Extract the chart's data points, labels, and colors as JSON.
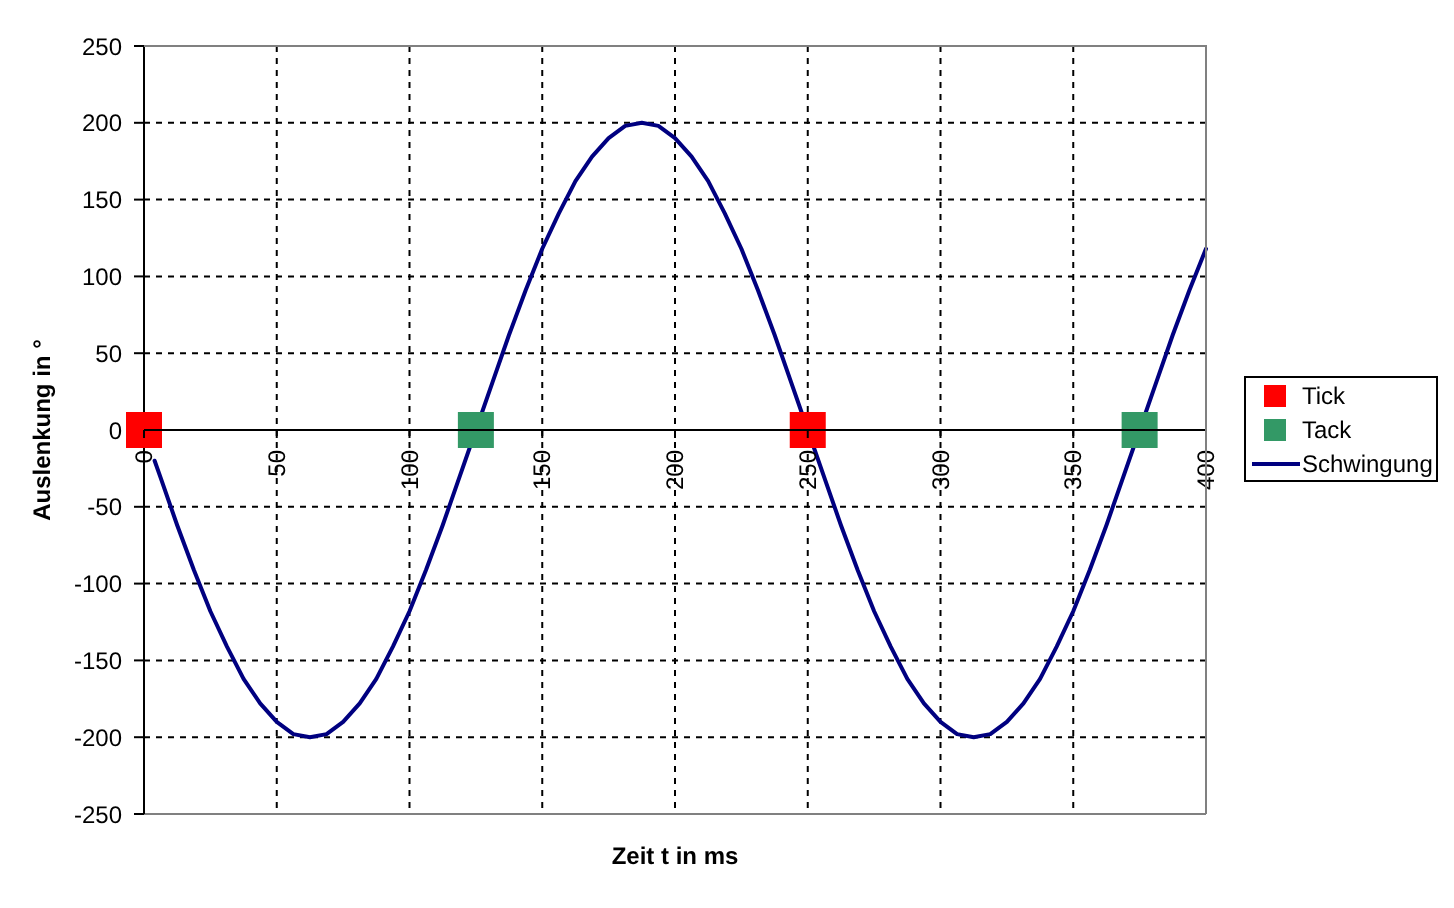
{
  "chart_data": {
    "type": "line",
    "xlabel": "Zeit t in ms",
    "ylabel": "Auslenkung in °",
    "xlim": [
      0,
      400
    ],
    "xticks": [
      0,
      50,
      100,
      150,
      200,
      250,
      300,
      350,
      400
    ],
    "ylim": [
      -250,
      250
    ],
    "yticks": [
      -250,
      -200,
      -150,
      -100,
      -50,
      0,
      50,
      100,
      150,
      200,
      250
    ],
    "grid": true,
    "legend": "right",
    "series": [
      {
        "name": "Tick",
        "type": "scatter",
        "marker": "square",
        "color": "#ff0000",
        "x": [
          0,
          250
        ],
        "values": [
          0,
          0
        ]
      },
      {
        "name": "Tack",
        "type": "scatter",
        "marker": "square",
        "color": "#339966",
        "x": [
          125,
          375
        ],
        "values": [
          0,
          0
        ]
      },
      {
        "name": "Schwingung",
        "color": "#000080",
        "x": [
          4,
          6.25,
          12.5,
          18.75,
          25,
          31.25,
          37.5,
          43.75,
          50,
          56.25,
          62.5,
          68.75,
          75,
          81.25,
          87.5,
          93.75,
          100,
          106.25,
          112.5,
          118.75,
          125,
          131.25,
          137.5,
          143.75,
          150,
          156.25,
          162.5,
          168.75,
          175,
          181.25,
          187.5,
          193.75,
          200,
          206.25,
          212.5,
          218.75,
          225,
          231.25,
          237.5,
          243.75,
          250,
          256.25,
          262.5,
          268.75,
          275,
          281.25,
          287.5,
          293.75,
          300,
          306.25,
          312.5,
          318.75,
          325,
          331.25,
          337.5,
          343.75,
          350,
          356.25,
          362.5,
          368.75,
          375,
          381.25,
          387.5,
          393.75,
          400
        ],
        "values": [
          -20,
          -31,
          -62,
          -91,
          -118,
          -141,
          -162,
          -178,
          -190,
          -198,
          -200,
          -198,
          -190,
          -178,
          -162,
          -141,
          -118,
          -91,
          -62,
          -31,
          0,
          31,
          62,
          91,
          118,
          141,
          162,
          178,
          190,
          198,
          200,
          198,
          190,
          178,
          162,
          141,
          118,
          91,
          62,
          31,
          0,
          -31,
          -62,
          -91,
          -118,
          -141,
          -162,
          -178,
          -190,
          -198,
          -200,
          -198,
          -190,
          -178,
          -162,
          -141,
          -118,
          -91,
          -62,
          -31,
          0,
          31,
          62,
          91,
          118
        ]
      }
    ]
  }
}
